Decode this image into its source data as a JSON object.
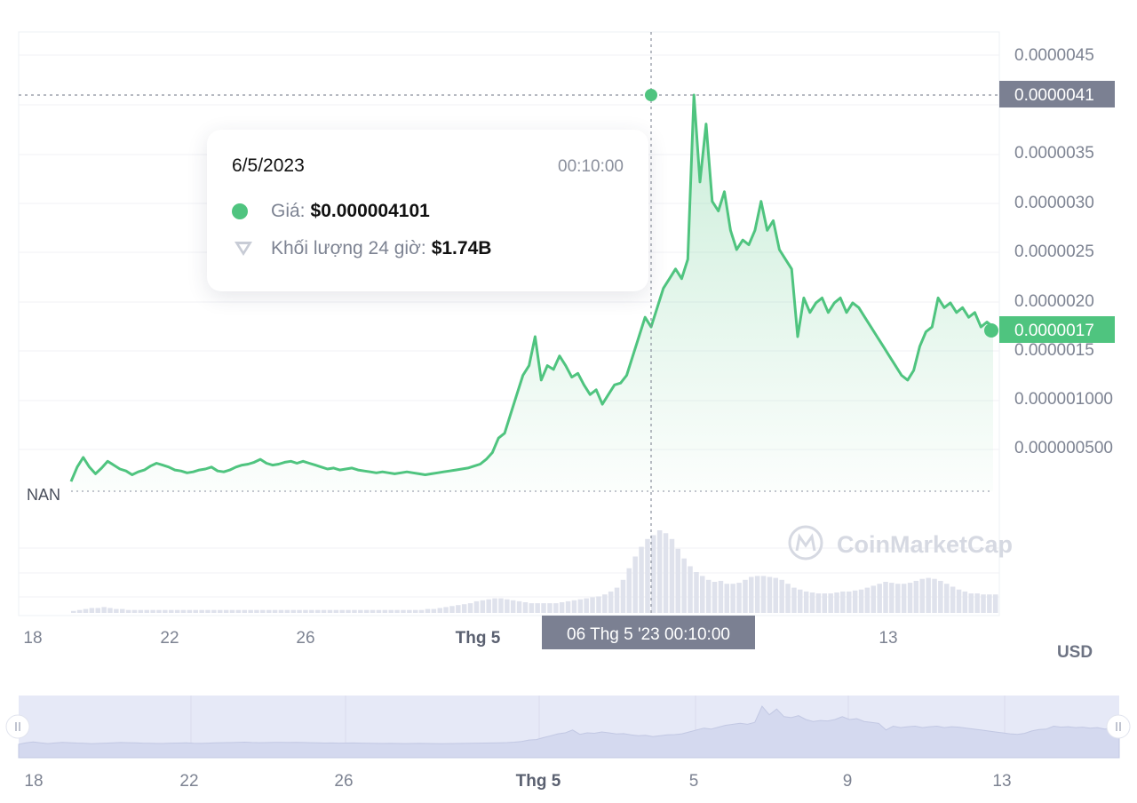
{
  "chart_data": {
    "type": "area",
    "currency": "USD",
    "y_ticks": [
      "0.0000045",
      "0.0000035",
      "0.0000030",
      "0.0000025",
      "0.0000020",
      "0.0000015",
      "0.000001000",
      "0.000000500"
    ],
    "ylim": [
      0,
      4.5e-06
    ],
    "baseline_label": "NAN",
    "x_ticks": [
      "18",
      "22",
      "26",
      "Thg 5",
      "13"
    ],
    "navigator_x_ticks": [
      "18",
      "22",
      "26",
      "Thg 5",
      "5",
      "9",
      "13"
    ],
    "crosshair_price_label": "0.0000041",
    "current_price_label": "0.0000017",
    "crosshair_date_label": "06 Thg 5 '23    00:10:00",
    "watermark": "CoinMarketCap",
    "price_series": [
      [
        0,
        1e-07
      ],
      [
        1,
        2.5e-07
      ],
      [
        2,
        3.5e-07
      ],
      [
        3,
        2.5e-07
      ],
      [
        4,
        1.8e-07
      ],
      [
        5,
        2.4e-07
      ],
      [
        6,
        3.1e-07
      ],
      [
        7,
        2.7e-07
      ],
      [
        8,
        2.3e-07
      ],
      [
        9,
        2.1e-07
      ],
      [
        10,
        1.7e-07
      ],
      [
        11,
        2e-07
      ],
      [
        12,
        2.2e-07
      ],
      [
        13,
        2.6e-07
      ],
      [
        14,
        2.9e-07
      ],
      [
        15,
        2.7e-07
      ],
      [
        16,
        2.5e-07
      ],
      [
        17,
        2.2e-07
      ],
      [
        18,
        2.1e-07
      ],
      [
        19,
        1.9e-07
      ],
      [
        20,
        2e-07
      ],
      [
        21,
        2.2e-07
      ],
      [
        22,
        2.3e-07
      ],
      [
        23,
        2.5e-07
      ],
      [
        24,
        2.1e-07
      ],
      [
        25,
        2e-07
      ],
      [
        26,
        2.2e-07
      ],
      [
        27,
        2.5e-07
      ],
      [
        28,
        2.7e-07
      ],
      [
        29,
        2.8e-07
      ],
      [
        30,
        3e-07
      ],
      [
        31,
        3.3e-07
      ],
      [
        32,
        2.9e-07
      ],
      [
        33,
        2.7e-07
      ],
      [
        34,
        2.8e-07
      ],
      [
        35,
        3e-07
      ],
      [
        36,
        3.1e-07
      ],
      [
        37,
        2.9e-07
      ],
      [
        38,
        3.1e-07
      ],
      [
        39,
        2.9e-07
      ],
      [
        40,
        2.7e-07
      ],
      [
        41,
        2.5e-07
      ],
      [
        42,
        2.3e-07
      ],
      [
        43,
        2.4e-07
      ],
      [
        44,
        2.2e-07
      ],
      [
        45,
        2.3e-07
      ],
      [
        46,
        2.4e-07
      ],
      [
        47,
        2.2e-07
      ],
      [
        48,
        2.1e-07
      ],
      [
        49,
        2e-07
      ],
      [
        50,
        1.9e-07
      ],
      [
        51,
        2e-07
      ],
      [
        52,
        1.9e-07
      ],
      [
        53,
        1.8e-07
      ],
      [
        54,
        1.9e-07
      ],
      [
        55,
        2e-07
      ],
      [
        56,
        1.9e-07
      ],
      [
        57,
        1.8e-07
      ],
      [
        58,
        1.7e-07
      ],
      [
        59,
        1.8e-07
      ],
      [
        60,
        1.9e-07
      ],
      [
        61,
        2e-07
      ],
      [
        62,
        2.1e-07
      ],
      [
        63,
        2.2e-07
      ],
      [
        64,
        2.3e-07
      ],
      [
        65,
        2.4e-07
      ],
      [
        66,
        2.6e-07
      ],
      [
        67,
        2.8e-07
      ],
      [
        68,
        3.3e-07
      ],
      [
        69,
        4e-07
      ],
      [
        70,
        5.5e-07
      ],
      [
        71,
        6e-07
      ],
      [
        72,
        8e-07
      ],
      [
        73,
        1e-06
      ],
      [
        74,
        1.2e-06
      ],
      [
        75,
        1.3e-06
      ],
      [
        76,
        1.6e-06
      ],
      [
        77,
        1.15e-06
      ],
      [
        78,
        1.3e-06
      ],
      [
        79,
        1.26e-06
      ],
      [
        80,
        1.4e-06
      ],
      [
        81,
        1.3e-06
      ],
      [
        82,
        1.18e-06
      ],
      [
        83,
        1.22e-06
      ],
      [
        84,
        1.1e-06
      ],
      [
        85,
        1e-06
      ],
      [
        86,
        1.05e-06
      ],
      [
        87,
        9e-07
      ],
      [
        88,
        1e-06
      ],
      [
        89,
        1.1e-06
      ],
      [
        90,
        1.12e-06
      ],
      [
        91,
        1.2e-06
      ],
      [
        92,
        1.4e-06
      ],
      [
        93,
        1.6e-06
      ],
      [
        94,
        1.8e-06
      ],
      [
        95,
        1.7e-06
      ],
      [
        96,
        1.9e-06
      ],
      [
        97,
        2.1e-06
      ],
      [
        98,
        2.2e-06
      ],
      [
        99,
        2.3e-06
      ],
      [
        100,
        2.2e-06
      ],
      [
        101,
        2.4e-06
      ],
      [
        102,
        4.1e-06
      ],
      [
        103,
        3.2e-06
      ],
      [
        104,
        3.8e-06
      ],
      [
        105,
        3e-06
      ],
      [
        106,
        2.9e-06
      ],
      [
        107,
        3.1e-06
      ],
      [
        108,
        2.7e-06
      ],
      [
        109,
        2.5e-06
      ],
      [
        110,
        2.6e-06
      ],
      [
        111,
        2.55e-06
      ],
      [
        112,
        2.7e-06
      ],
      [
        113,
        3e-06
      ],
      [
        114,
        2.7e-06
      ],
      [
        115,
        2.8e-06
      ],
      [
        116,
        2.5e-06
      ],
      [
        117,
        2.4e-06
      ],
      [
        118,
        2.3e-06
      ],
      [
        119,
        1.6e-06
      ],
      [
        120,
        2e-06
      ],
      [
        121,
        1.85e-06
      ],
      [
        122,
        1.95e-06
      ],
      [
        123,
        2e-06
      ],
      [
        124,
        1.85e-06
      ],
      [
        125,
        1.95e-06
      ],
      [
        126,
        2e-06
      ],
      [
        127,
        1.85e-06
      ],
      [
        128,
        1.95e-06
      ],
      [
        129,
        1.9e-06
      ],
      [
        130,
        1.8e-06
      ],
      [
        131,
        1.7e-06
      ],
      [
        132,
        1.6e-06
      ],
      [
        133,
        1.5e-06
      ],
      [
        134,
        1.4e-06
      ],
      [
        135,
        1.3e-06
      ],
      [
        136,
        1.2e-06
      ],
      [
        137,
        1.15e-06
      ],
      [
        138,
        1.25e-06
      ],
      [
        139,
        1.5e-06
      ],
      [
        140,
        1.65e-06
      ],
      [
        141,
        1.7e-06
      ],
      [
        142,
        2e-06
      ],
      [
        143,
        1.9e-06
      ],
      [
        144,
        1.95e-06
      ],
      [
        145,
        1.85e-06
      ],
      [
        146,
        1.9e-06
      ],
      [
        147,
        1.8e-06
      ],
      [
        148,
        1.85e-06
      ],
      [
        149,
        1.7e-06
      ],
      [
        150,
        1.75e-06
      ],
      [
        151,
        1.7e-06
      ]
    ],
    "volume_series": [
      2,
      3,
      4,
      5,
      5,
      6,
      5,
      4,
      4,
      3,
      3,
      3,
      3,
      3,
      3,
      3,
      3,
      3,
      3,
      3,
      3,
      3,
      3,
      3,
      3,
      3,
      3,
      3,
      3,
      3,
      3,
      3,
      3,
      3,
      3,
      3,
      3,
      3,
      3,
      3,
      3,
      3,
      3,
      3,
      3,
      3,
      3,
      3,
      3,
      3,
      3,
      3,
      3,
      3,
      3,
      3,
      3,
      3,
      4,
      4,
      5,
      6,
      7,
      8,
      9,
      10,
      12,
      13,
      14,
      15,
      15,
      14,
      13,
      12,
      11,
      10,
      10,
      10,
      10,
      10,
      11,
      12,
      13,
      14,
      15,
      16,
      17,
      19,
      22,
      26,
      34,
      46,
      58,
      68,
      76,
      80,
      85,
      82,
      76,
      66,
      56,
      48,
      42,
      38,
      34,
      32,
      33,
      30,
      30,
      31,
      34,
      37,
      38,
      38,
      37,
      36,
      34,
      30,
      26,
      24,
      22,
      21,
      20,
      20,
      20,
      21,
      22,
      22,
      23,
      24,
      26,
      28,
      30,
      32,
      31,
      30,
      30,
      31,
      33,
      35,
      36,
      35,
      33,
      30,
      27,
      24,
      22,
      20,
      20,
      19,
      19,
      19
    ]
  }
}
